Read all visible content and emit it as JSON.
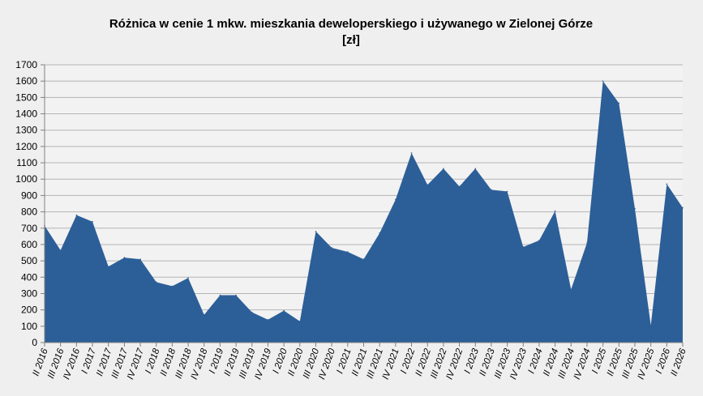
{
  "chart_data": {
    "type": "area",
    "title_lines": [
      "Różnica w cenie 1 mkw. mieszkania deweloperskiego i używanego w Zielonej Górze",
      "[zł]"
    ],
    "xlabel": "",
    "ylabel": "",
    "ylim": [
      0,
      1700
    ],
    "yticks": [
      0,
      100,
      200,
      300,
      400,
      500,
      600,
      700,
      800,
      900,
      1000,
      1100,
      1200,
      1300,
      1400,
      1500,
      1600,
      1700
    ],
    "grid": true,
    "legend": "none",
    "color": "#2c5f98",
    "categories": [
      "II 2016",
      "III 2016",
      "IV 2016",
      "I 2017",
      "II 2017",
      "III 2017",
      "IV 2017",
      "I 2018",
      "II 2018",
      "III 2018",
      "IV 2018",
      "I 2019",
      "II 2019",
      "III 2019",
      "IV 2019",
      "I 2020",
      "II 2020",
      "III 2020",
      "IV 2020",
      "I 2021",
      "II 2021",
      "III 2021",
      "IV 2021",
      "I 2022",
      "II 2022",
      "III 2022",
      "IV 2022",
      "I 2023",
      "II 2023",
      "III 2023",
      "IV 2023",
      "I 2024",
      "II 2024",
      "III 2024",
      "IV 2024",
      "I 2025",
      "II 2025",
      "III 2025",
      "IV 2025",
      "I 2026",
      "II 2026"
    ],
    "values": [
      715,
      565,
      780,
      740,
      465,
      520,
      510,
      370,
      345,
      395,
      170,
      290,
      290,
      185,
      140,
      195,
      130,
      680,
      580,
      555,
      510,
      670,
      875,
      1160,
      965,
      1065,
      955,
      1065,
      935,
      925,
      585,
      625,
      805,
      325,
      610,
      1600,
      1465,
      820,
      105,
      970,
      825
    ]
  }
}
